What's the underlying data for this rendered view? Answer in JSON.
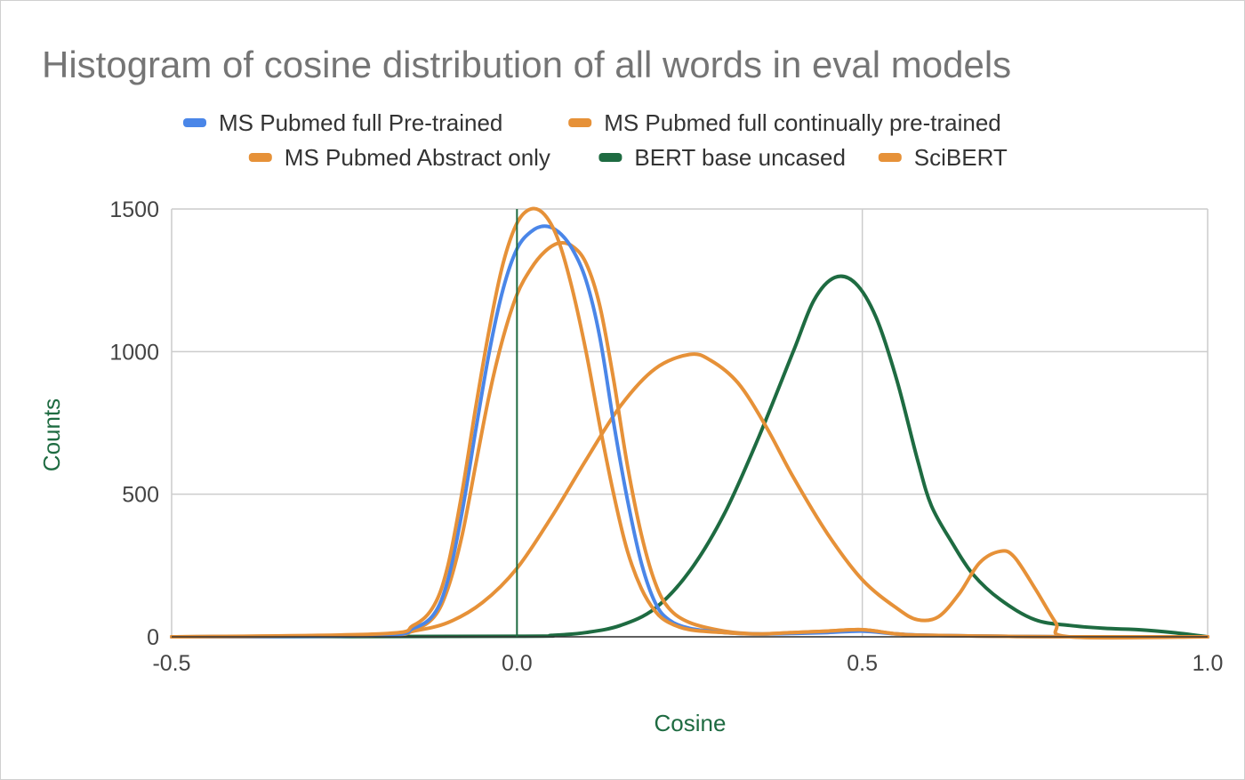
{
  "chart_data": {
    "type": "line",
    "title": "Histogram of cosine distribution of all words in eval models",
    "xlabel": "Cosine",
    "ylabel": "Counts",
    "xlim": [
      -0.5,
      1.0
    ],
    "ylim": [
      0,
      1500
    ],
    "x_ticks": [
      -0.5,
      0.0,
      0.5,
      1.0
    ],
    "x_tick_labels": [
      "-0.5",
      "0.0",
      "0.5",
      "1.0"
    ],
    "y_ticks": [
      0,
      500,
      1000,
      1500
    ],
    "y_tick_labels": [
      "0",
      "500",
      "1000",
      "1500"
    ],
    "grid": true,
    "legend_position": "top",
    "series": [
      {
        "name": "MS Pubmed full Pre-trained",
        "color": "#4a86e8",
        "points": [
          [
            -0.5,
            0
          ],
          [
            -0.2,
            5
          ],
          [
            -0.15,
            30
          ],
          [
            -0.12,
            80
          ],
          [
            -0.1,
            200
          ],
          [
            -0.08,
            430
          ],
          [
            -0.06,
            720
          ],
          [
            -0.04,
            1000
          ],
          [
            -0.02,
            1220
          ],
          [
            0.0,
            1360
          ],
          [
            0.02,
            1420
          ],
          [
            0.04,
            1440
          ],
          [
            0.06,
            1420
          ],
          [
            0.08,
            1360
          ],
          [
            0.1,
            1250
          ],
          [
            0.12,
            1050
          ],
          [
            0.14,
            750
          ],
          [
            0.16,
            480
          ],
          [
            0.18,
            260
          ],
          [
            0.2,
            120
          ],
          [
            0.22,
            60
          ],
          [
            0.25,
            30
          ],
          [
            0.3,
            15
          ],
          [
            0.35,
            10
          ],
          [
            0.4,
            12
          ],
          [
            0.45,
            15
          ],
          [
            0.5,
            20
          ],
          [
            0.55,
            10
          ],
          [
            0.6,
            5
          ],
          [
            0.7,
            2
          ],
          [
            0.8,
            0
          ],
          [
            1.0,
            0
          ]
        ]
      },
      {
        "name": "MS Pubmed full continually  pre-trained",
        "color": "#e69138",
        "points": [
          [
            -0.5,
            0
          ],
          [
            -0.2,
            5
          ],
          [
            -0.15,
            25
          ],
          [
            -0.12,
            70
          ],
          [
            -0.1,
            170
          ],
          [
            -0.08,
            350
          ],
          [
            -0.06,
            600
          ],
          [
            -0.04,
            850
          ],
          [
            -0.02,
            1050
          ],
          [
            0.0,
            1200
          ],
          [
            0.02,
            1290
          ],
          [
            0.04,
            1350
          ],
          [
            0.06,
            1380
          ],
          [
            0.08,
            1370
          ],
          [
            0.1,
            1310
          ],
          [
            0.12,
            1160
          ],
          [
            0.14,
            900
          ],
          [
            0.16,
            600
          ],
          [
            0.18,
            360
          ],
          [
            0.2,
            190
          ],
          [
            0.22,
            100
          ],
          [
            0.25,
            50
          ],
          [
            0.3,
            20
          ],
          [
            0.35,
            10
          ],
          [
            0.4,
            15
          ],
          [
            0.45,
            20
          ],
          [
            0.5,
            25
          ],
          [
            0.55,
            10
          ],
          [
            0.6,
            5
          ],
          [
            0.7,
            2
          ],
          [
            0.8,
            0
          ],
          [
            1.0,
            0
          ]
        ]
      },
      {
        "name": "MS Pubmed Abstract only",
        "color": "#e69138",
        "points": [
          [
            -0.5,
            0
          ],
          [
            -0.2,
            10
          ],
          [
            -0.15,
            40
          ],
          [
            -0.12,
            110
          ],
          [
            -0.1,
            250
          ],
          [
            -0.08,
            500
          ],
          [
            -0.06,
            800
          ],
          [
            -0.04,
            1080
          ],
          [
            -0.02,
            1310
          ],
          [
            0.0,
            1450
          ],
          [
            0.02,
            1500
          ],
          [
            0.04,
            1480
          ],
          [
            0.06,
            1390
          ],
          [
            0.08,
            1220
          ],
          [
            0.1,
            1000
          ],
          [
            0.12,
            740
          ],
          [
            0.14,
            500
          ],
          [
            0.16,
            300
          ],
          [
            0.18,
            170
          ],
          [
            0.2,
            90
          ],
          [
            0.22,
            50
          ],
          [
            0.25,
            25
          ],
          [
            0.3,
            15
          ],
          [
            0.35,
            10
          ],
          [
            0.4,
            15
          ],
          [
            0.45,
            20
          ],
          [
            0.5,
            25
          ],
          [
            0.55,
            10
          ],
          [
            0.6,
            5
          ],
          [
            0.7,
            2
          ],
          [
            0.8,
            0
          ],
          [
            1.0,
            0
          ]
        ]
      },
      {
        "name": "BERT base uncased",
        "color": "#1e6b41",
        "points": [
          [
            -0.5,
            0
          ],
          [
            0.0,
            2
          ],
          [
            0.05,
            5
          ],
          [
            0.1,
            15
          ],
          [
            0.15,
            40
          ],
          [
            0.2,
            100
          ],
          [
            0.25,
            230
          ],
          [
            0.3,
            430
          ],
          [
            0.35,
            700
          ],
          [
            0.4,
            1000
          ],
          [
            0.43,
            1180
          ],
          [
            0.46,
            1260
          ],
          [
            0.49,
            1240
          ],
          [
            0.52,
            1120
          ],
          [
            0.55,
            900
          ],
          [
            0.58,
            620
          ],
          [
            0.6,
            460
          ],
          [
            0.63,
            330
          ],
          [
            0.66,
            220
          ],
          [
            0.7,
            130
          ],
          [
            0.75,
            60
          ],
          [
            0.8,
            40
          ],
          [
            0.85,
            30
          ],
          [
            0.9,
            25
          ],
          [
            0.95,
            15
          ],
          [
            1.0,
            0
          ]
        ]
      },
      {
        "name": "SciBERT",
        "color": "#e69138",
        "points": [
          [
            -0.5,
            0
          ],
          [
            -0.2,
            5
          ],
          [
            -0.15,
            20
          ],
          [
            -0.1,
            50
          ],
          [
            -0.05,
            120
          ],
          [
            0.0,
            240
          ],
          [
            0.05,
            420
          ],
          [
            0.1,
            620
          ],
          [
            0.15,
            810
          ],
          [
            0.2,
            940
          ],
          [
            0.25,
            990
          ],
          [
            0.28,
            970
          ],
          [
            0.32,
            890
          ],
          [
            0.36,
            740
          ],
          [
            0.4,
            560
          ],
          [
            0.45,
            360
          ],
          [
            0.5,
            200
          ],
          [
            0.55,
            100
          ],
          [
            0.58,
            60
          ],
          [
            0.61,
            70
          ],
          [
            0.64,
            150
          ],
          [
            0.67,
            260
          ],
          [
            0.7,
            300
          ],
          [
            0.72,
            280
          ],
          [
            0.75,
            170
          ],
          [
            0.78,
            50
          ],
          [
            0.8,
            0
          ],
          [
            1.0,
            0
          ]
        ]
      }
    ]
  }
}
